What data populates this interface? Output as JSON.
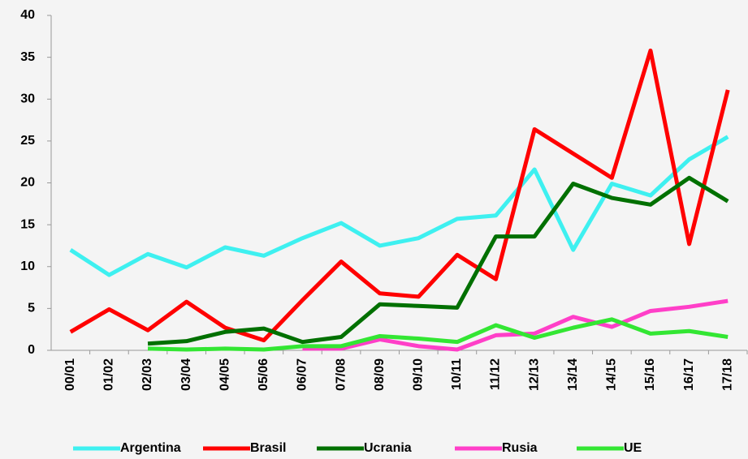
{
  "chart_data": {
    "type": "line",
    "categories": [
      "00/01",
      "01/02",
      "02/03",
      "03/04",
      "04/05",
      "05/06",
      "06/07",
      "07/08",
      "08/09",
      "09/10",
      "10/11",
      "11/12",
      "12/13",
      "13/14",
      "14/15",
      "15/16",
      "16/17",
      "17/18"
    ],
    "series": [
      {
        "name": "Argentina",
        "color": "#3ef0f0",
        "values": [
          12,
          9,
          11.5,
          9.9,
          12.3,
          11.3,
          13.4,
          15.2,
          12.5,
          13.4,
          15.7,
          16.1,
          21.6,
          12,
          19.9,
          18.5,
          22.8,
          25.5
        ]
      },
      {
        "name": "Brasil",
        "color": "#ff0000",
        "values": [
          2.2,
          4.9,
          2.4,
          5.8,
          2.7,
          1.2,
          6,
          10.6,
          6.8,
          6.4,
          11.4,
          8.5,
          26.4,
          23.5,
          20.6,
          35.8,
          12.7,
          31.1
        ]
      },
      {
        "name": "Ucrania",
        "color": "#007000",
        "values": [
          null,
          null,
          0.8,
          1.1,
          2.2,
          2.6,
          1,
          1.6,
          5.5,
          5.3,
          5.1,
          13.6,
          13.6,
          19.9,
          18.2,
          17.4,
          20.6,
          17.8
        ]
      },
      {
        "name": "Rusia",
        "color": "#ff3fc8",
        "values": [
          null,
          null,
          null,
          null,
          null,
          null,
          0.2,
          0.2,
          1.3,
          0.5,
          0.1,
          1.8,
          2,
          4,
          2.8,
          4.7,
          5.2,
          5.9
        ]
      },
      {
        "name": "UE",
        "color": "#33e633",
        "values": [
          null,
          null,
          0.2,
          0.1,
          0.2,
          0.1,
          0.5,
          0.5,
          1.7,
          1.4,
          1,
          3,
          1.5,
          2.7,
          3.7,
          2,
          2.3,
          1.6
        ]
      }
    ],
    "ylim": [
      0,
      40
    ],
    "yticks": [
      0,
      5,
      10,
      15,
      20,
      25,
      30,
      35,
      40
    ],
    "legend": "bottom"
  }
}
